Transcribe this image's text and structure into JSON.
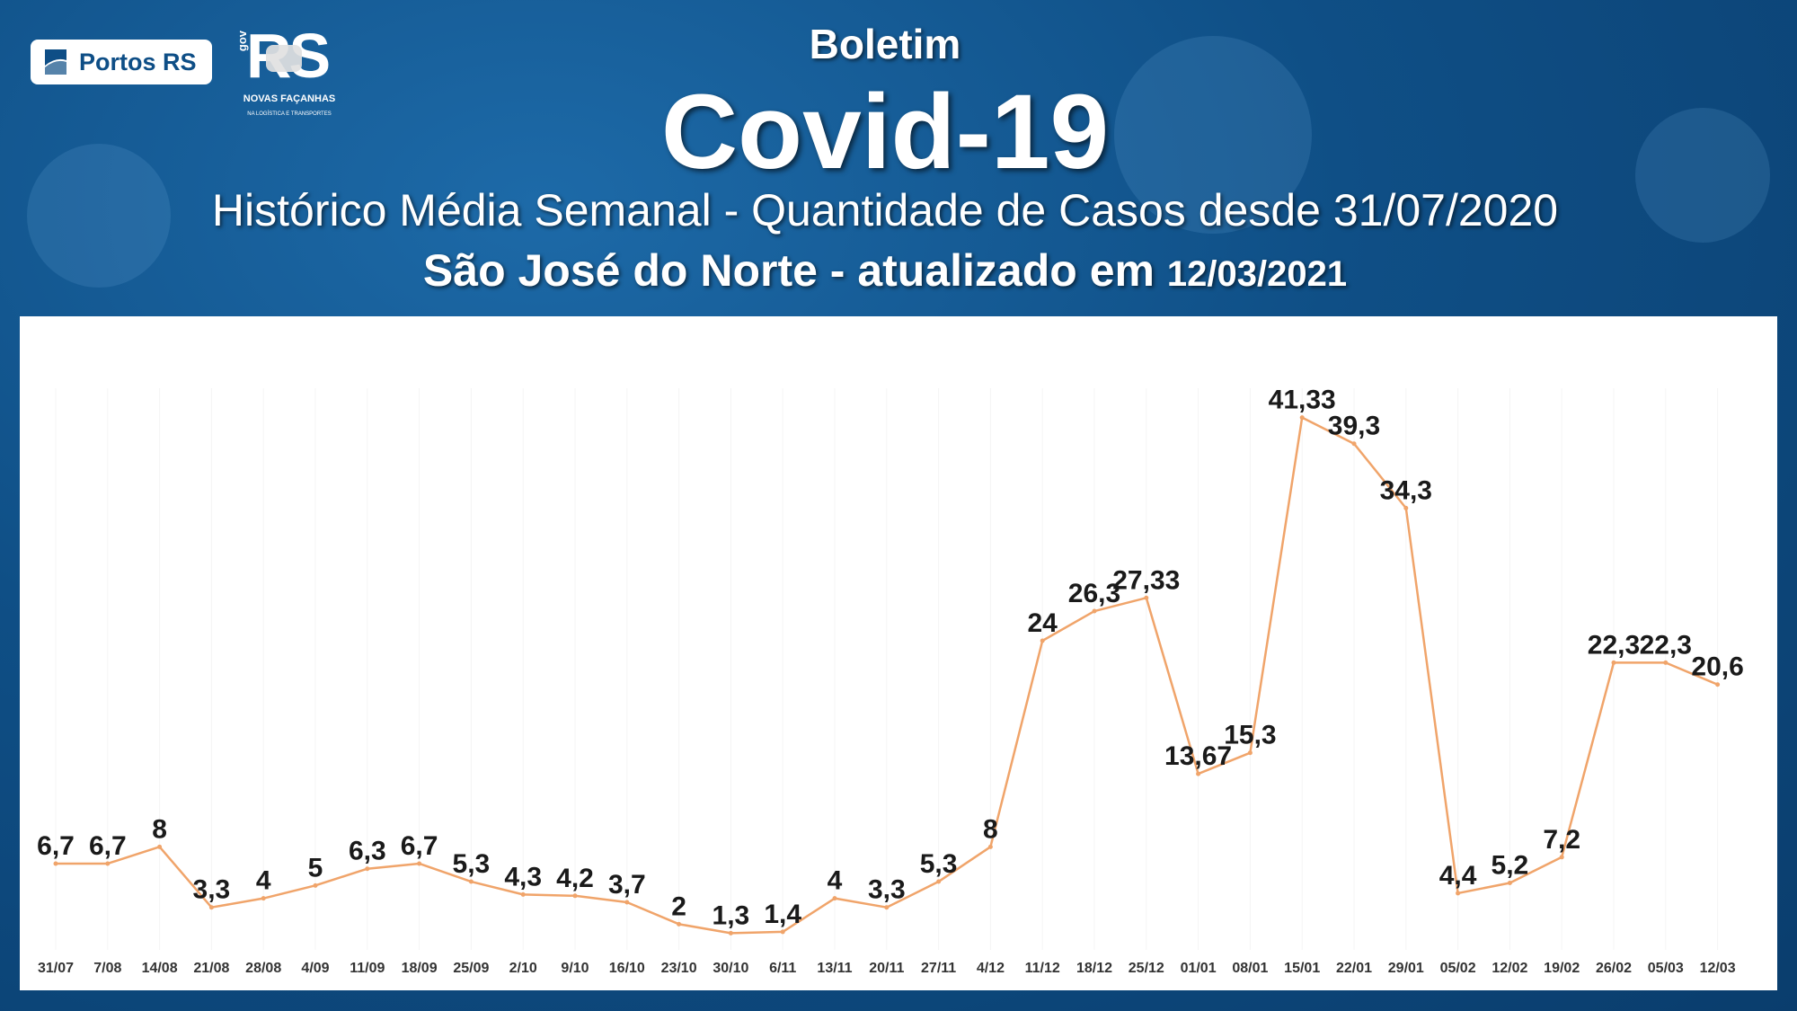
{
  "header": {
    "boletim": "Boletim",
    "title": "Covid-19",
    "subtitle": "Histórico Média Semanal - Quantidade de Casos desde 31/07/2020",
    "place": "São José do Norte - atualizado em",
    "updated": "12/03/2021"
  },
  "logos": {
    "portos_text": "Portos RS",
    "rs_text": "RS",
    "gov_text": "gov",
    "novas_facanhas": "NOVAS FAÇANHAS",
    "slogan": "NA LOGÍSTICA E TRANSPORTES"
  },
  "colors": {
    "background": "#0f4f86",
    "line": "#f0a46a",
    "panel": "#ffffff",
    "label": "#1a1a1a"
  },
  "chart_data": {
    "type": "line",
    "title": "",
    "xlabel": "",
    "ylabel": "",
    "ylim": [
      0,
      45
    ],
    "grid": false,
    "legend": "none",
    "categories": [
      "31/07",
      "7/08",
      "14/08",
      "21/08",
      "28/08",
      "4/09",
      "11/09",
      "18/09",
      "25/09",
      "2/10",
      "9/10",
      "16/10",
      "23/10",
      "30/10",
      "6/11",
      "13/11",
      "20/11",
      "27/11",
      "4/12",
      "11/12",
      "18/12",
      "25/12",
      "01/01",
      "08/01",
      "15/01",
      "22/01",
      "29/01",
      "05/02",
      "12/02",
      "19/02",
      "26/02",
      "05/03",
      "12/03"
    ],
    "series": [
      {
        "values": [
          6.7,
          6.7,
          8,
          3.3,
          4,
          5,
          6.3,
          6.7,
          5.3,
          4.3,
          4.2,
          3.7,
          2,
          1.3,
          1.4,
          4,
          3.3,
          5.3,
          8,
          24,
          26.3,
          27.33,
          13.67,
          15.3,
          41.33,
          39.3,
          34.3,
          4.4,
          5.2,
          7.2,
          22.3,
          22.3,
          20.6
        ],
        "labels": [
          "6,7",
          "6,7",
          "8",
          "3,3",
          "4",
          "5",
          "6,3",
          "6,7",
          "5,3",
          "4,3",
          "4,2",
          "3,7",
          "2",
          "1,3",
          "1,4",
          "4",
          "3,3",
          "5,3",
          "8",
          "24",
          "26,3",
          "27,33",
          "13,67",
          "15,3",
          "41,33",
          "39,3",
          "34,3",
          "4,4",
          "5,2",
          "7,2",
          "22,3",
          "22,3",
          "20,6"
        ]
      }
    ]
  }
}
